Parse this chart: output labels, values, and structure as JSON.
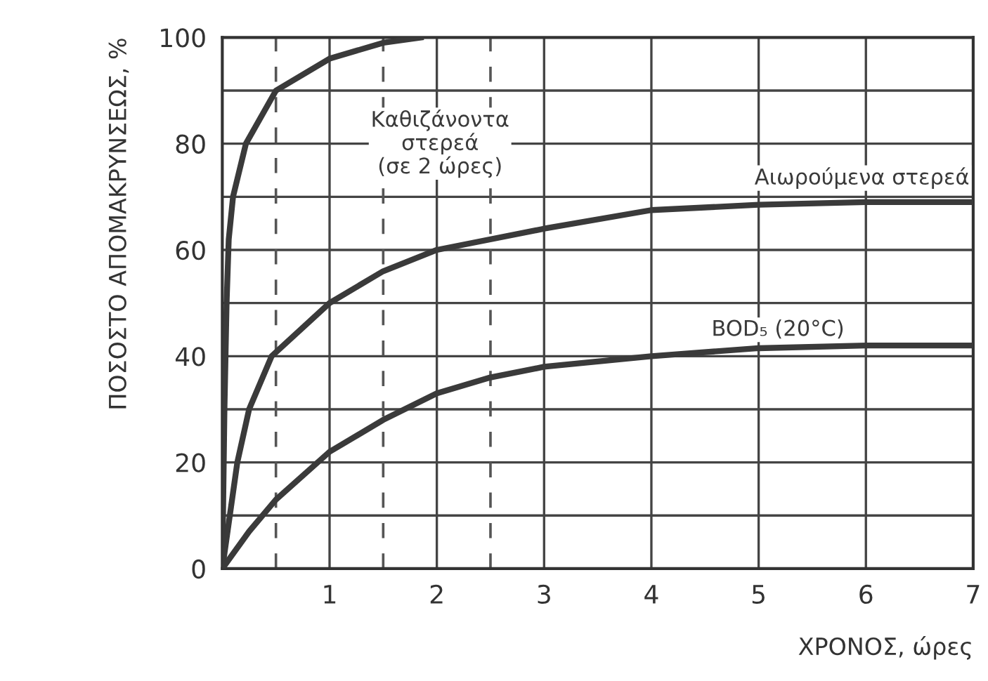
{
  "chart_data": {
    "type": "line",
    "xlabel": "ΧΡΟΝΟΣ, ώρες",
    "ylabel": "ΠΟΣΟΣΤΟ ΑΠΟΜΑΚΡΥΝΣΕΩΣ, %",
    "xlim": [
      0,
      7
    ],
    "ylim": [
      0,
      100
    ],
    "xticks": [
      {
        "value": 0,
        "label": null
      },
      1,
      2,
      3,
      4,
      5,
      6,
      7
    ],
    "yticks": [
      0,
      {
        "value": 10,
        "label": null
      },
      20,
      {
        "value": 30,
        "label": null
      },
      40,
      {
        "value": 50,
        "label": null
      },
      60,
      {
        "value": 70,
        "label": null
      },
      80,
      {
        "value": 90,
        "label": null
      },
      100
    ],
    "grid": true,
    "legend": false,
    "marker": "none",
    "line_style": "solid",
    "ref_lines": [
      {
        "axis": "x",
        "value": 0.5,
        "label": null,
        "color": "#555555",
        "line_style": "dashed"
      },
      {
        "axis": "x",
        "value": 1.5,
        "label": null,
        "color": "#555555",
        "line_style": "dashed"
      },
      {
        "axis": "x",
        "value": 2.5,
        "label": null,
        "color": "#555555",
        "line_style": "dashed"
      }
    ],
    "series": [
      {
        "name": "Καθιζάνοντα\nστερεά\n(σε 2 ώρες)",
        "color": "#3a3a3a",
        "x": [
          0,
          0.02,
          0.04,
          0.06,
          0.1,
          0.22,
          0.5,
          1,
          1.5,
          1.85
        ],
        "values": [
          0,
          30,
          50,
          62,
          70,
          80,
          90,
          96,
          99,
          100
        ]
      },
      {
        "name": "Αιωρούμενα στερεά",
        "color": "#3a3a3a",
        "x": [
          0,
          0.14,
          0.25,
          0.46,
          1,
          1.5,
          2,
          3,
          4,
          5,
          6,
          7
        ],
        "values": [
          0,
          20,
          30,
          40,
          50,
          56,
          60,
          64,
          67.5,
          68.5,
          69,
          69
        ]
      },
      {
        "name": "BOD₅ (20°C)",
        "color": "#3a3a3a",
        "x": [
          0,
          0.25,
          0.5,
          1,
          1.5,
          2,
          2.5,
          3,
          4,
          5,
          6,
          7
        ],
        "values": [
          0,
          7,
          13,
          22,
          28,
          33,
          36,
          38,
          40,
          41.5,
          42,
          42
        ]
      }
    ]
  }
}
